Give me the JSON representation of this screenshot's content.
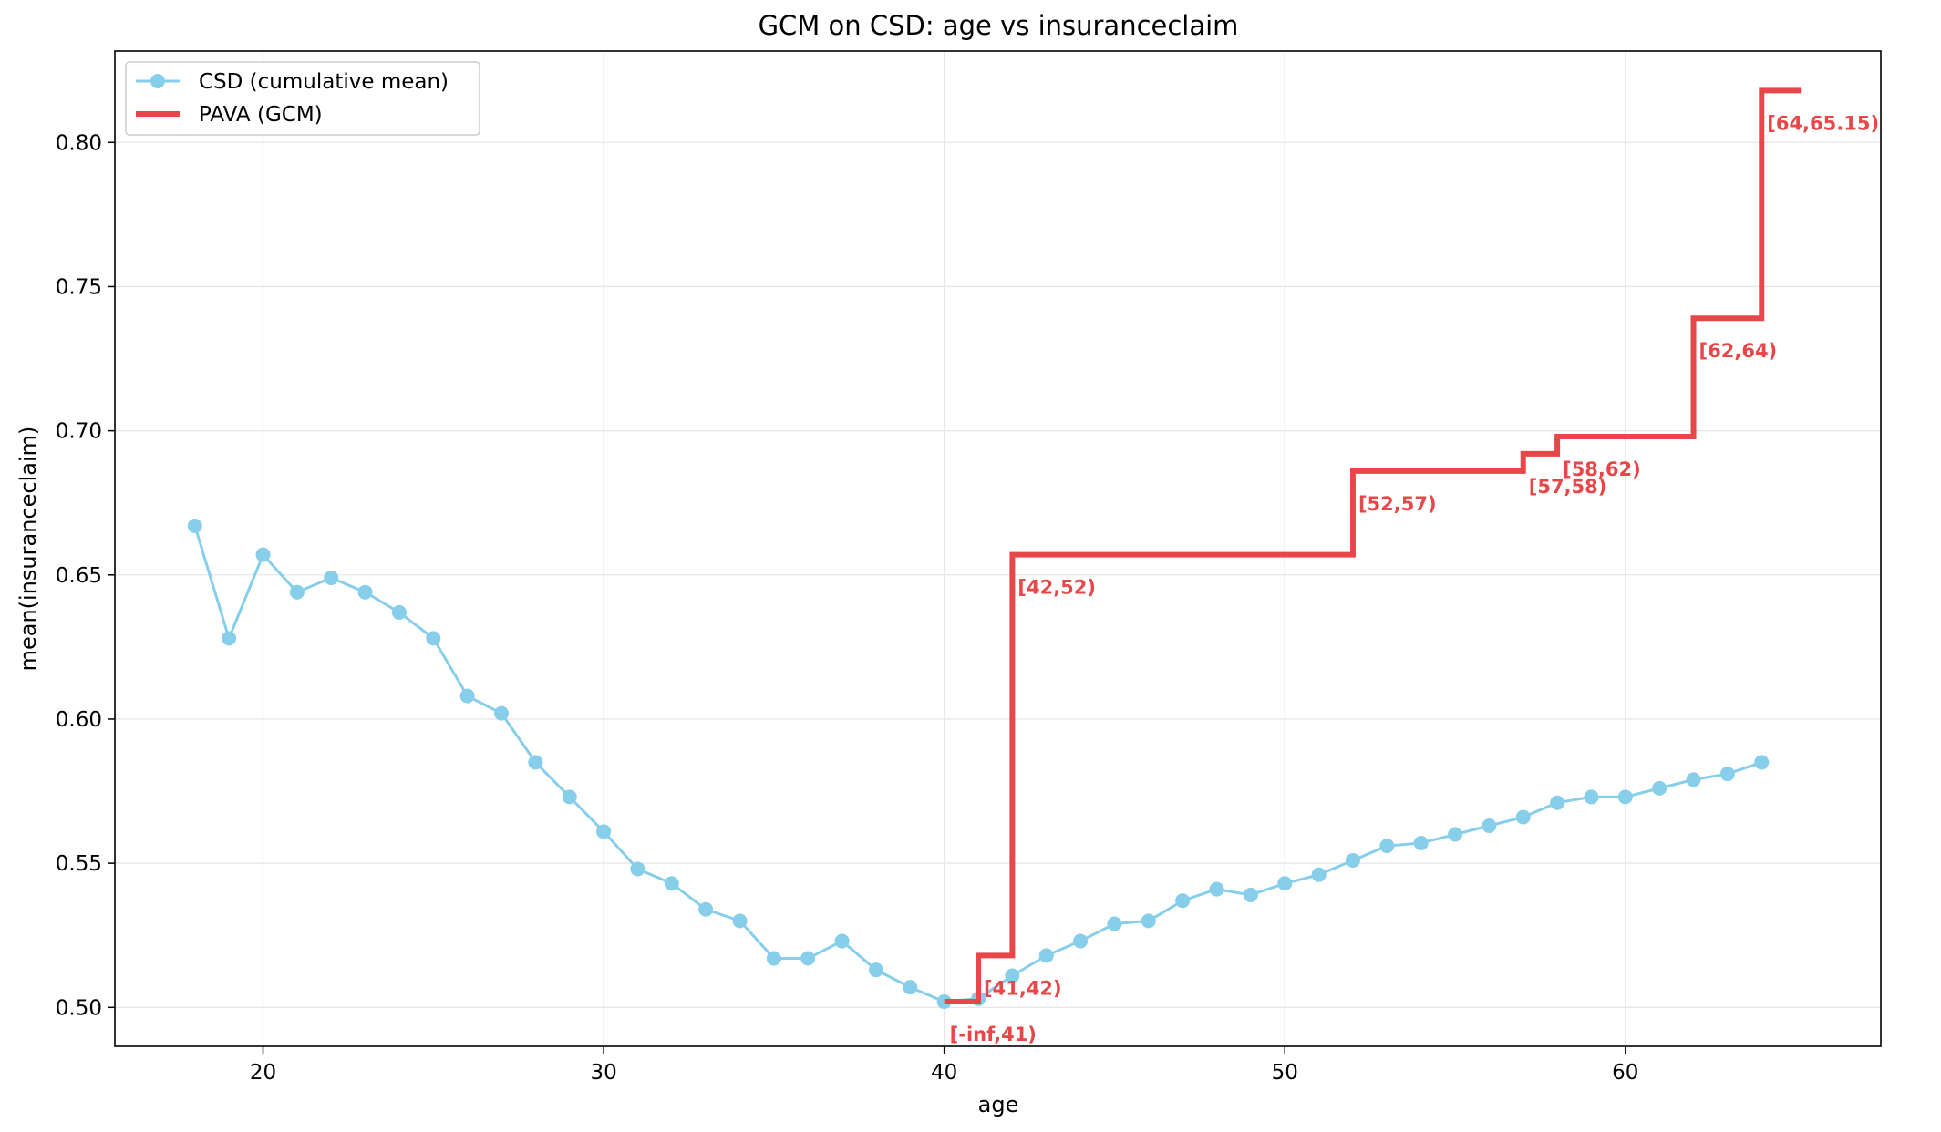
{
  "chart_data": {
    "type": "line",
    "title": "GCM on CSD: age vs insuranceclaim",
    "xlabel": "age",
    "ylabel": "mean(insuranceclaim)",
    "xlim": [
      15.65,
      67.5
    ],
    "ylim": [
      0.4865,
      0.8317
    ],
    "xticks": [
      20,
      30,
      40,
      50,
      60
    ],
    "yticks": [
      0.5,
      0.55,
      0.6,
      0.65,
      0.7,
      0.75,
      0.8
    ],
    "xtick_labels": [
      "20",
      "30",
      "40",
      "50",
      "60"
    ],
    "ytick_labels": [
      "0.50",
      "0.55",
      "0.60",
      "0.65",
      "0.70",
      "0.75",
      "0.80"
    ],
    "grid": true,
    "legend_position": "top-left",
    "colors": {
      "csd": "#87CEEB",
      "pava": "#E8474A",
      "grid": "#e6e6e6",
      "axis": "#000000"
    },
    "series": [
      {
        "name": "CSD (cumulative mean)",
        "kind": "line-markers",
        "x": [
          18,
          19,
          20,
          21,
          22,
          23,
          24,
          25,
          26,
          27,
          28,
          29,
          30,
          31,
          32,
          33,
          34,
          35,
          36,
          37,
          38,
          39,
          40,
          41,
          42,
          43,
          44,
          45,
          46,
          47,
          48,
          49,
          50,
          51,
          52,
          53,
          54,
          55,
          56,
          57,
          58,
          59,
          60,
          61,
          62,
          63,
          64
        ],
        "y": [
          0.667,
          0.628,
          0.657,
          0.644,
          0.649,
          0.644,
          0.637,
          0.628,
          0.608,
          0.602,
          0.585,
          0.573,
          0.561,
          0.548,
          0.543,
          0.534,
          0.53,
          0.517,
          0.517,
          0.523,
          0.513,
          0.507,
          0.502,
          0.503,
          0.511,
          0.518,
          0.523,
          0.529,
          0.53,
          0.537,
          0.541,
          0.539,
          0.543,
          0.546,
          0.551,
          0.556,
          0.557,
          0.56,
          0.563,
          0.566,
          0.571,
          0.573,
          0.573,
          0.576,
          0.579,
          0.581,
          0.585
        ]
      },
      {
        "name": "PAVA (GCM)",
        "kind": "step",
        "segments": [
          {
            "label": "[-inf,41)",
            "x0": 40,
            "x1": 41,
            "y": 0.502
          },
          {
            "label": "[41,42)",
            "x0": 41,
            "x1": 42,
            "y": 0.518
          },
          {
            "label": "[42,52)",
            "x0": 42,
            "x1": 52,
            "y": 0.657
          },
          {
            "label": "[52,57)",
            "x0": 52,
            "x1": 57,
            "y": 0.686
          },
          {
            "label": "[57,58)",
            "x0": 57,
            "x1": 58,
            "y": 0.692
          },
          {
            "label": "[58,62)",
            "x0": 58,
            "x1": 62,
            "y": 0.698
          },
          {
            "label": "[62,64)",
            "x0": 62,
            "x1": 64,
            "y": 0.739
          },
          {
            "label": "[64,65.15)",
            "x0": 64,
            "x1": 65.15,
            "y": 0.818
          }
        ]
      }
    ]
  }
}
